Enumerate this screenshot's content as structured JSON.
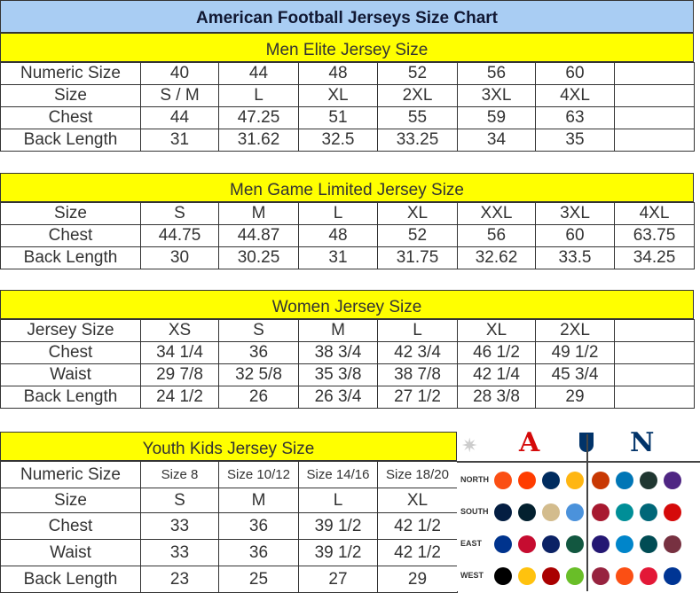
{
  "title": "American Football Jerseys Size Chart",
  "men_elite": {
    "heading": "Men Elite Jersey Size",
    "rows": [
      [
        "Numeric Size",
        "40",
        "44",
        "48",
        "52",
        "56",
        "60",
        ""
      ],
      [
        "Size",
        "S / M",
        "L",
        "XL",
        "2XL",
        "3XL",
        "4XL",
        ""
      ],
      [
        "Chest",
        "44",
        "47.25",
        "51",
        "55",
        "59",
        "63",
        ""
      ],
      [
        "Back Length",
        "31",
        "31.62",
        "32.5",
        "33.25",
        "34",
        "35",
        ""
      ]
    ]
  },
  "men_game": {
    "heading": "Men Game Limited Jersey Size",
    "rows": [
      [
        "Size",
        "S",
        "M",
        "L",
        "XL",
        "XXL",
        "3XL",
        "4XL"
      ],
      [
        "Chest",
        "44.75",
        "44.87",
        "48",
        "52",
        "56",
        "60",
        "63.75"
      ],
      [
        "Back Length",
        "30",
        "30.25",
        "31",
        "31.75",
        "32.62",
        "33.5",
        "34.25"
      ]
    ]
  },
  "women": {
    "heading": "Women Jersey Size",
    "rows": [
      [
        "Jersey Size",
        "XS",
        "S",
        "M",
        "L",
        "XL",
        "2XL",
        ""
      ],
      [
        "Chest",
        "34 1/4",
        "36",
        "38 3/4",
        "42 3/4",
        "46 1/2",
        "49 1/2",
        ""
      ],
      [
        "Waist",
        "29 7/8",
        "32 5/8",
        "35 3/8",
        "38 7/8",
        "42 1/4",
        "45 3/4",
        ""
      ],
      [
        "Back Length",
        "24 1/2",
        "26",
        "26 3/4",
        "27 1/2",
        "28 3/8",
        "29",
        ""
      ]
    ]
  },
  "youth": {
    "heading": "Youth Kids Jersey Size",
    "rows": [
      [
        "Numeric Size",
        "Size 8",
        "Size 10/12",
        "Size 14/16",
        "Size 18/20"
      ],
      [
        "Size",
        "S",
        "M",
        "L",
        "XL"
      ],
      [
        "Chest",
        "33",
        "36",
        "39 1/2",
        "42 1/2"
      ],
      [
        "Waist",
        "33",
        "36",
        "39 1/2",
        "42 1/2"
      ],
      [
        "Back Length",
        "23",
        "25",
        "27",
        "29"
      ]
    ]
  },
  "nfl": {
    "afc": "A",
    "nfc": "N",
    "divisions": [
      "NORTH",
      "SOUTH",
      "EAST",
      "WEST"
    ],
    "afc_colors": [
      [
        "#fb4f14",
        "#ff3c00",
        "#002c5f",
        "#ffb612"
      ],
      [
        "#041e42",
        "#03202f",
        "#d3bc8d",
        "#4b92db"
      ],
      [
        "#00338d",
        "#c60c30",
        "#0b2265",
        "#125740"
      ],
      [
        "#000000",
        "#ffc20e",
        "#aa0000",
        "#69be28"
      ]
    ],
    "nfc_colors": [
      [
        "#c83803",
        "#0076b6",
        "#203731",
        "#4f2683"
      ],
      [
        "#a71930",
        "#008e97",
        "#006778",
        "#d50a0a"
      ],
      [
        "#241773",
        "#0085ca",
        "#004c54",
        "#773141"
      ],
      [
        "#97233f",
        "#fb4f14",
        "#e31837",
        "#003594"
      ]
    ]
  }
}
